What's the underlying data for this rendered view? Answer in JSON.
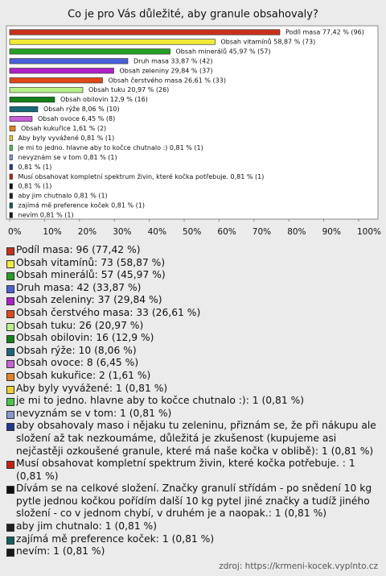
{
  "chart_data": {
    "type": "bar",
    "orientation": "horizontal",
    "title": "Co je pro Vás důležité, aby granule obsahovaly?",
    "categories": [
      "Podíl masa 77,42 % (96)",
      "Obsah vitamínů 58,87 % (73)",
      "Obsah minerálů 45,97 % (57)",
      "Druh masa 33,87 % (42)",
      "Obsah zeleniny 29,84 % (37)",
      "Obsah čerstvého masa 26,61 % (33)",
      "Obsah tuku 20,97 % (26)",
      "Obsah obilovin 12,9 % (16)",
      "Obsah rýže 8,06 % (10)",
      "Obsah ovoce 6,45 % (8)",
      "Obsah kukuřice 1,61 % (2)",
      "Aby byly vyvážené 0,81 % (1)",
      "je mi to jedno. hlavne aby to kočce chutnalo :) 0,81 % (1)",
      "nevyznám se v tom 0,81 % (1)",
      "0,81 % (1)",
      "Musí obsahovat kompletní spektrum živin, které kočka potřebuje.  0,81 % (1)",
      "0,81 % (1)",
      "aby jim chutnalo 0,81 % (1)",
      "zajímá mě preference koček 0,81 % (1)",
      "nevím 0,81 % (1)"
    ],
    "values": [
      77.42,
      58.87,
      45.97,
      33.87,
      29.84,
      26.61,
      20.97,
      12.9,
      8.06,
      6.45,
      1.61,
      0.81,
      0.81,
      0.81,
      0.81,
      0.81,
      0.81,
      0.81,
      0.81,
      0.81
    ],
    "colors": [
      "#c8301c",
      "#f2ea3a",
      "#23a023",
      "#4a60d8",
      "#b020c8",
      "#e04818",
      "#b8f088",
      "#148018",
      "#186878",
      "#c860d8",
      "#e88020",
      "#f0d030",
      "#48c848",
      "#8898d0",
      "#203890",
      "#c82010",
      "#101010",
      "#202020",
      "#106060",
      "#181818"
    ],
    "xlim": [
      0,
      100
    ],
    "xticks": [
      {
        "value": 0,
        "label": "0%"
      },
      {
        "value": 10,
        "label": "10%"
      },
      {
        "value": 20,
        "label": "20%"
      },
      {
        "value": 30,
        "label": "30%"
      },
      {
        "value": 40,
        "label": "40%"
      },
      {
        "value": 50,
        "label": "50%"
      },
      {
        "value": 60,
        "label": "60%"
      },
      {
        "value": 70,
        "label": "70%"
      },
      {
        "value": 80,
        "label": "80%"
      },
      {
        "value": 90,
        "label": "90%"
      },
      {
        "value": 100,
        "label": "100%"
      }
    ],
    "legend": [
      "Podíl masa: 96 (77,42 %)",
      "Obsah vitamínů: 73 (58,87 %)",
      "Obsah minerálů: 57 (45,97 %)",
      "Druh masa: 42 (33,87 %)",
      "Obsah zeleniny: 37 (29,84 %)",
      "Obsah čerstvého masa: 33 (26,61 %)",
      "Obsah tuku: 26 (20,97 %)",
      "Obsah obilovin: 16 (12,9 %)",
      "Obsah rýže: 10 (8,06 %)",
      "Obsah ovoce: 8 (6,45 %)",
      "Obsah kukuřice: 2 (1,61 %)",
      "Aby byly vyvážené: 1 (0,81 %)",
      "je mi to jedno. hlavne aby to kočce chutnalo :): 1 (0,81 %)",
      "nevyznám se v tom: 1 (0,81 %)",
      "aby obsahovaly maso i nějaku tu zeleninu, přiznám se, že při nákupu ale složení až tak nezkoumáme, důležitá je zkušenost (kupujeme asi nejčastěji ozkoušené granule, které má naše kočka v oblibě): 1 (0,81 %)",
      "Musí obsahovat kompletní spektrum živin, které kočka potřebuje. : 1 (0,81 %)",
      "Dívám se na celkové složení. Značky granulí střídám - po snědení 10 kg pytle jednou kočkou pořídím další 10 kg pytel jiné značky a tudíž jiného složení - co v jednom chybí, v druhém je a naopak.: 1 (0,81 %)",
      "aby jim chutnalo: 1 (0,81 %)",
      "zajímá mě preference koček: 1 (0,81 %)",
      "nevím: 1 (0,81 %)"
    ],
    "source": "zdroj: https://krmeni-kocek.vyplnto.cz"
  }
}
